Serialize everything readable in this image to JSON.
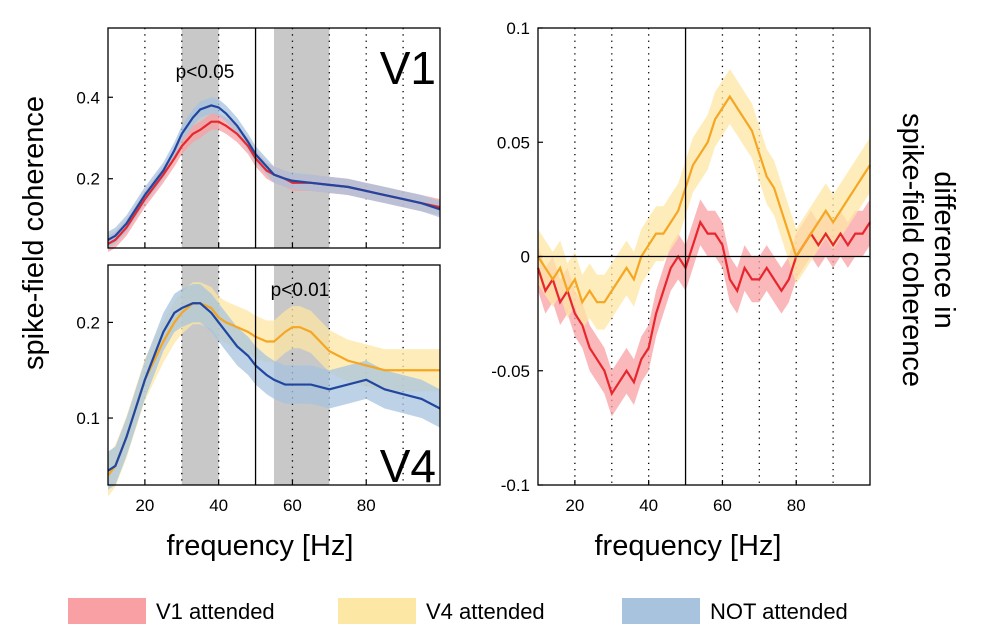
{
  "figure": {
    "left_ylabel": "spike-field coherence",
    "right_ylabel": [
      "difference in",
      "spike-field coherence"
    ]
  },
  "legend": {
    "items": [
      {
        "label": "V1 attended",
        "color": "#f8a0a3"
      },
      {
        "label": "V4 attended",
        "color": "#fde7a4"
      },
      {
        "label": "NOT attended",
        "color": "#a7c3dd"
      }
    ]
  },
  "colors": {
    "v1_line": "#e8262d",
    "v1_band": "#f8a0a3",
    "v4_line": "#f5a623",
    "v4_band": "#fde7a4",
    "not_line": "#2146a0",
    "not_band": "#a7c3dd",
    "shade": "#c8c8c8"
  },
  "chart_data": [
    {
      "type": "line",
      "panel_label": "V1",
      "annotation": "p<0.05",
      "xlim": [
        10,
        100
      ],
      "ylim": [
        0.03,
        0.57
      ],
      "xticks": [
        20,
        40,
        60,
        80
      ],
      "yticks": [
        0.2,
        0.4
      ],
      "ytick_labels": [
        "0.2",
        "0.4"
      ],
      "xlabel": "",
      "vline": 50,
      "vertical_gridlines": [
        20,
        30,
        40,
        60,
        70,
        80,
        90
      ],
      "shaded_bands": [
        [
          30,
          40
        ],
        [
          55,
          70
        ]
      ],
      "x": [
        10,
        12,
        15,
        20,
        25,
        28,
        30,
        33,
        35,
        38,
        40,
        42,
        45,
        48,
        50,
        53,
        55,
        58,
        60,
        65,
        70,
        75,
        80,
        85,
        90,
        95,
        100
      ],
      "series": [
        {
          "name": "V1 attended",
          "band_width": 0.02,
          "values": [
            0.04,
            0.05,
            0.08,
            0.15,
            0.21,
            0.25,
            0.28,
            0.31,
            0.32,
            0.34,
            0.34,
            0.33,
            0.31,
            0.28,
            0.25,
            0.22,
            0.21,
            0.2,
            0.19,
            0.19,
            0.185,
            0.18,
            0.17,
            0.16,
            0.15,
            0.14,
            0.13
          ]
        },
        {
          "name": "NOT attended",
          "band_width": 0.02,
          "values": [
            0.05,
            0.06,
            0.09,
            0.16,
            0.22,
            0.27,
            0.31,
            0.35,
            0.37,
            0.38,
            0.375,
            0.36,
            0.33,
            0.29,
            0.26,
            0.23,
            0.21,
            0.2,
            0.195,
            0.19,
            0.185,
            0.18,
            0.17,
            0.16,
            0.15,
            0.14,
            0.125
          ]
        }
      ]
    },
    {
      "type": "line",
      "panel_label": "V4",
      "annotation": "p<0.01",
      "xlim": [
        10,
        100
      ],
      "ylim": [
        0.03,
        0.26
      ],
      "xticks": [
        20,
        40,
        60,
        80
      ],
      "xtick_labels": [
        "20",
        "40",
        "60",
        "80"
      ],
      "yticks": [
        0.1,
        0.2
      ],
      "ytick_labels": [
        "0.1",
        "0.2"
      ],
      "xlabel": "frequency [Hz]",
      "vline": 50,
      "vertical_gridlines": [
        20,
        30,
        40,
        60,
        70,
        80,
        90
      ],
      "shaded_bands": [
        [
          30,
          40
        ],
        [
          55,
          70
        ]
      ],
      "x": [
        10,
        12,
        15,
        20,
        25,
        28,
        30,
        33,
        35,
        38,
        40,
        42,
        45,
        48,
        50,
        53,
        55,
        58,
        60,
        62,
        65,
        70,
        75,
        80,
        85,
        90,
        95,
        100
      ],
      "series": [
        {
          "name": "V4 attended",
          "band_width": 0.022,
          "values": [
            0.04,
            0.05,
            0.08,
            0.14,
            0.18,
            0.2,
            0.21,
            0.22,
            0.22,
            0.215,
            0.205,
            0.2,
            0.195,
            0.19,
            0.185,
            0.18,
            0.18,
            0.19,
            0.195,
            0.195,
            0.19,
            0.17,
            0.16,
            0.155,
            0.15,
            0.15,
            0.15,
            0.15
          ]
        },
        {
          "name": "NOT attended",
          "band_width": 0.02,
          "values": [
            0.045,
            0.05,
            0.08,
            0.14,
            0.19,
            0.21,
            0.215,
            0.22,
            0.22,
            0.21,
            0.2,
            0.19,
            0.175,
            0.165,
            0.155,
            0.145,
            0.14,
            0.135,
            0.135,
            0.135,
            0.135,
            0.13,
            0.135,
            0.14,
            0.13,
            0.125,
            0.12,
            0.11
          ]
        }
      ]
    },
    {
      "type": "line",
      "xlim": [
        10,
        100
      ],
      "ylim": [
        -0.1,
        0.1
      ],
      "xticks": [
        20,
        40,
        60,
        80
      ],
      "xtick_labels": [
        "20",
        "40",
        "60",
        "80"
      ],
      "yticks": [
        -0.1,
        -0.05,
        0,
        0.05,
        0.1
      ],
      "ytick_labels": [
        "-0.1",
        "-0.05",
        "0",
        "0.05",
        "0.1"
      ],
      "xlabel": "frequency [Hz]",
      "ylabel": "difference in spike-field coherence",
      "vline": 50,
      "hline": 0,
      "vertical_gridlines": [
        20,
        30,
        40,
        60,
        70,
        80,
        90
      ],
      "x": [
        10,
        12,
        14,
        16,
        18,
        20,
        22,
        24,
        26,
        28,
        30,
        32,
        34,
        36,
        38,
        40,
        42,
        44,
        46,
        48,
        50,
        52,
        54,
        56,
        58,
        60,
        62,
        64,
        66,
        68,
        70,
        72,
        74,
        76,
        78,
        80,
        82,
        84,
        86,
        88,
        90,
        92,
        94,
        96,
        98,
        100
      ],
      "series": [
        {
          "name": "V1 attended",
          "band_width": 0.01,
          "values": [
            -0.005,
            -0.015,
            -0.01,
            -0.02,
            -0.015,
            -0.025,
            -0.03,
            -0.04,
            -0.045,
            -0.05,
            -0.06,
            -0.055,
            -0.05,
            -0.055,
            -0.045,
            -0.04,
            -0.025,
            -0.015,
            -0.005,
            0,
            -0.005,
            0.005,
            0.015,
            0.01,
            0.01,
            0.005,
            -0.01,
            -0.015,
            -0.005,
            -0.01,
            -0.01,
            -0.005,
            -0.01,
            -0.015,
            -0.01,
            0,
            0.005,
            0.01,
            0.005,
            0.01,
            0.005,
            0.01,
            0.005,
            0.01,
            0.01,
            0.015
          ]
        },
        {
          "name": "V4 attended",
          "band_width": 0.012,
          "values": [
            0,
            -0.005,
            -0.01,
            -0.005,
            -0.015,
            -0.01,
            -0.02,
            -0.015,
            -0.02,
            -0.02,
            -0.015,
            -0.01,
            -0.005,
            -0.01,
            0,
            0.005,
            0.01,
            0.01,
            0.015,
            0.02,
            0.03,
            0.04,
            0.045,
            0.05,
            0.06,
            0.065,
            0.07,
            0.065,
            0.06,
            0.055,
            0.045,
            0.035,
            0.03,
            0.02,
            0.01,
            0,
            0.005,
            0.01,
            0.015,
            0.02,
            0.015,
            0.02,
            0.025,
            0.03,
            0.035,
            0.04
          ]
        }
      ]
    }
  ]
}
